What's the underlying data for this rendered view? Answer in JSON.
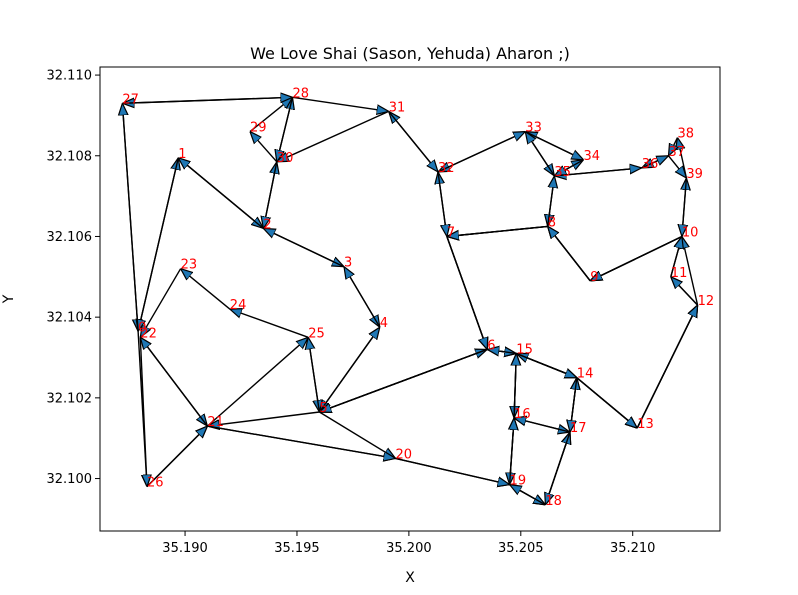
{
  "chart_data": {
    "type": "line",
    "title": "We Love Shai (Sason, Yehuda) Aharon ;)",
    "xlabel": "X",
    "ylabel": "Y",
    "xlim": [
      35.1862,
      35.2139
    ],
    "ylim": [
      32.0987,
      32.1102
    ],
    "xticks": [
      {
        "value": 35.19,
        "label": "35.190"
      },
      {
        "value": 35.195,
        "label": "35.195"
      },
      {
        "value": 35.2,
        "label": "35.200"
      },
      {
        "value": 35.205,
        "label": "35.205"
      },
      {
        "value": 35.21,
        "label": "35.210"
      }
    ],
    "yticks": [
      {
        "value": 32.1,
        "label": "32.100"
      },
      {
        "value": 32.102,
        "label": "32.102"
      },
      {
        "value": 32.104,
        "label": "32.104"
      },
      {
        "value": 32.106,
        "label": "32.106"
      },
      {
        "value": 32.108,
        "label": "32.108"
      },
      {
        "value": 32.11,
        "label": "32.110"
      }
    ],
    "grid": false,
    "arrow_color": "#1f77b4",
    "label_color": "#ff0000",
    "points": [
      {
        "label": "0",
        "x": 35.1879,
        "y": 32.10365
      },
      {
        "label": "1",
        "x": 35.1897,
        "y": 32.10795
      },
      {
        "label": "2",
        "x": 35.1935,
        "y": 32.1062
      },
      {
        "label": "3",
        "x": 35.1971,
        "y": 32.10525
      },
      {
        "label": "4",
        "x": 35.1987,
        "y": 32.10375
      },
      {
        "label": "5",
        "x": 35.196,
        "y": 32.10165
      },
      {
        "label": "6",
        "x": 35.2035,
        "y": 32.1032
      },
      {
        "label": "7",
        "x": 35.2017,
        "y": 32.106
      },
      {
        "label": "8",
        "x": 35.2062,
        "y": 32.10625
      },
      {
        "label": "9",
        "x": 35.2081,
        "y": 32.1049
      },
      {
        "label": "10",
        "x": 35.2122,
        "y": 32.106
      },
      {
        "label": "11",
        "x": 35.2117,
        "y": 32.105
      },
      {
        "label": "12",
        "x": 35.2129,
        "y": 32.1043
      },
      {
        "label": "13",
        "x": 35.2102,
        "y": 32.10125
      },
      {
        "label": "14",
        "x": 35.2075,
        "y": 32.1025
      },
      {
        "label": "15",
        "x": 35.2048,
        "y": 32.1031
      },
      {
        "label": "16",
        "x": 35.2047,
        "y": 32.1015
      },
      {
        "label": "17",
        "x": 35.2072,
        "y": 32.10115
      },
      {
        "label": "18",
        "x": 35.2061,
        "y": 32.09935
      },
      {
        "label": "19",
        "x": 35.2045,
        "y": 32.09985
      },
      {
        "label": "20",
        "x": 35.1994,
        "y": 32.1005
      },
      {
        "label": "21",
        "x": 35.191,
        "y": 32.1013
      },
      {
        "label": "22",
        "x": 35.188,
        "y": 32.1035
      },
      {
        "label": "23",
        "x": 35.1898,
        "y": 32.1052
      },
      {
        "label": "24",
        "x": 35.192,
        "y": 32.1042
      },
      {
        "label": "25",
        "x": 35.1955,
        "y": 32.1035
      },
      {
        "label": "26",
        "x": 35.1883,
        "y": 32.0998
      },
      {
        "label": "27",
        "x": 35.1872,
        "y": 32.1093
      },
      {
        "label": "28",
        "x": 35.1948,
        "y": 32.10945
      },
      {
        "label": "29",
        "x": 35.1929,
        "y": 32.1086
      },
      {
        "label": "30",
        "x": 35.1941,
        "y": 32.10785
      },
      {
        "label": "31",
        "x": 35.1991,
        "y": 32.1091
      },
      {
        "label": "32",
        "x": 35.2013,
        "y": 32.1076
      },
      {
        "label": "33",
        "x": 35.2052,
        "y": 32.1086
      },
      {
        "label": "34",
        "x": 35.2078,
        "y": 32.1079
      },
      {
        "label": "35",
        "x": 35.2065,
        "y": 32.1075
      },
      {
        "label": "36",
        "x": 35.2104,
        "y": 32.1077
      },
      {
        "label": "37",
        "x": 35.2116,
        "y": 32.108
      },
      {
        "label": "38",
        "x": 35.212,
        "y": 32.10845
      },
      {
        "label": "39",
        "x": 35.2124,
        "y": 32.10745
      }
    ],
    "path": [
      0,
      1,
      2,
      3,
      4,
      5,
      6,
      15,
      14,
      13,
      12,
      11,
      10,
      9,
      8,
      7,
      32,
      31,
      30,
      28,
      27,
      0,
      26,
      21,
      25,
      5,
      20,
      19,
      16,
      17,
      14,
      15,
      16,
      19,
      18,
      17,
      14,
      13,
      12,
      10,
      39,
      38,
      37,
      36,
      35,
      34,
      33,
      35,
      8,
      7,
      6,
      5,
      25,
      24,
      23,
      22,
      21,
      20,
      19,
      18,
      17,
      16,
      15,
      14,
      13,
      12,
      11,
      10,
      9,
      8,
      35,
      33,
      32,
      7,
      6,
      15,
      14,
      17,
      18,
      19,
      16,
      15,
      6,
      5,
      4,
      3,
      2,
      30,
      29,
      28,
      30,
      2,
      1,
      0,
      27,
      28,
      31,
      32,
      33,
      34,
      35,
      36,
      37,
      39,
      10,
      9,
      8,
      7,
      6,
      5,
      21,
      22,
      26,
      21,
      20
    ]
  }
}
